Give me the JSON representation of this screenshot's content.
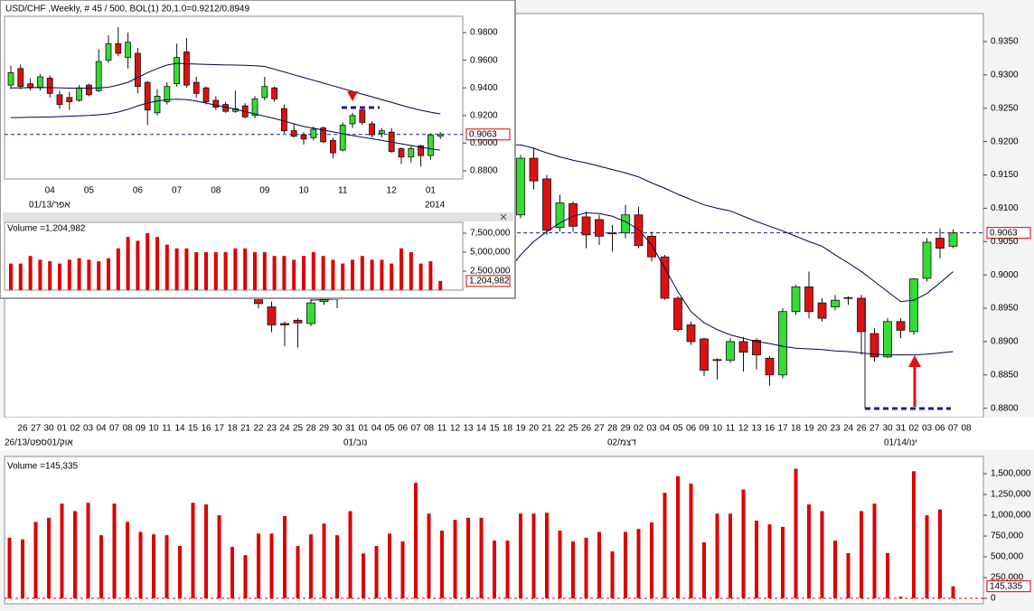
{
  "chart_data": [
    {
      "type": "candlestick",
      "categories": [
        null,
        "26",
        "27",
        "30",
        "01",
        "02",
        "03",
        "04",
        "07",
        "08",
        "09",
        "10",
        "11",
        "14",
        "15",
        "16",
        "17",
        "18",
        "21",
        "22",
        "23",
        "24",
        "25",
        "28",
        "29",
        "30",
        "31",
        "01",
        "04",
        "05",
        "06",
        "07",
        "08",
        "11",
        "12",
        "13",
        "14",
        "15",
        "18",
        "19",
        "20",
        "21",
        "22",
        "25",
        "26",
        "27",
        "28",
        "29",
        "02",
        "03",
        "04",
        "05",
        "06",
        "09",
        "10",
        "11",
        "12",
        "13",
        "16",
        "17",
        "18",
        "19",
        "20",
        "23",
        "24",
        "26",
        "27",
        "30",
        "31",
        "02",
        "03",
        "06",
        "07",
        "08"
      ],
      "period_labels": [
        "26/13/ספט",
        "01/אוק",
        "01/נוב",
        "02/דצמ",
        "01/14/ינו"
      ],
      "open": [
        null,
        null,
        null,
        null,
        null,
        null,
        null,
        null,
        null,
        null,
        null,
        null,
        null,
        null,
        null,
        null,
        null,
        null,
        null,
        0.8975,
        0.8952,
        0.8927,
        0.8932,
        0.8927,
        0.896,
        0.897,
        null,
        null,
        null,
        null,
        null,
        null,
        null,
        null,
        null,
        null,
        null,
        null,
        null,
        0.909,
        0.9175,
        0.9144,
        0.9071,
        0.9107,
        0.9087,
        0.9083,
        0.9063,
        0.9063,
        0.909,
        0.9058,
        0.9027,
        0.8965,
        0.8925,
        0.8904,
        0.8873,
        0.8872,
        0.89,
        0.8902,
        0.8875,
        0.885,
        0.8945,
        0.8982,
        0.8958,
        0.8952,
        0.8965,
        0.8965,
        0.8912,
        0.8877,
        0.893,
        0.8915,
        0.8995,
        0.9055,
        0.9043,
        null
      ],
      "high": [
        null,
        null,
        null,
        null,
        null,
        null,
        null,
        null,
        null,
        null,
        null,
        null,
        null,
        null,
        null,
        null,
        null,
        null,
        null,
        0.8985,
        0.896,
        0.893,
        0.8935,
        0.8965,
        0.898,
        0.899,
        null,
        null,
        null,
        null,
        null,
        null,
        null,
        null,
        null,
        null,
        null,
        null,
        null,
        0.918,
        0.919,
        0.915,
        0.912,
        0.911,
        0.9095,
        0.909,
        0.9075,
        0.9105,
        0.9102,
        0.9065,
        0.903,
        0.8968,
        0.893,
        0.8906,
        0.8875,
        0.8905,
        0.8907,
        0.8905,
        0.8878,
        0.895,
        0.8985,
        0.9005,
        0.8965,
        0.897,
        0.8968,
        0.897,
        0.892,
        0.8935,
        0.8935,
        0.8995,
        0.9055,
        0.907,
        0.9068,
        null
      ],
      "low": [
        null,
        null,
        null,
        null,
        null,
        null,
        null,
        null,
        null,
        null,
        null,
        null,
        null,
        null,
        null,
        null,
        null,
        null,
        null,
        0.895,
        0.8914,
        0.8893,
        0.8891,
        0.8923,
        0.8955,
        0.895,
        null,
        null,
        null,
        null,
        null,
        null,
        null,
        null,
        null,
        null,
        null,
        null,
        null,
        0.9085,
        0.9128,
        0.906,
        0.9065,
        0.9065,
        0.904,
        0.9045,
        0.9035,
        0.9055,
        0.904,
        0.902,
        0.8963,
        0.8915,
        0.8895,
        0.8848,
        0.8843,
        0.8868,
        0.8855,
        0.8858,
        0.8834,
        0.8845,
        0.894,
        0.8935,
        0.893,
        0.8947,
        0.8955,
        0.888,
        0.887,
        0.8875,
        0.8905,
        0.891,
        0.899,
        0.9025,
        0.904,
        null
      ],
      "close": [
        null,
        null,
        null,
        null,
        null,
        null,
        null,
        null,
        null,
        null,
        null,
        null,
        null,
        null,
        null,
        null,
        null,
        null,
        null,
        0.8957,
        0.8925,
        0.8925,
        0.8928,
        0.8958,
        0.8973,
        0.8975,
        null,
        null,
        null,
        null,
        null,
        null,
        null,
        null,
        null,
        null,
        null,
        null,
        null,
        0.9175,
        0.9141,
        0.9067,
        0.9108,
        0.9073,
        0.906,
        0.9058,
        0.9062,
        0.909,
        0.9044,
        0.9027,
        0.8965,
        0.8918,
        0.89,
        0.8857,
        0.8872,
        0.89,
        0.8884,
        0.888,
        0.885,
        0.8945,
        0.8982,
        0.8945,
        0.8935,
        0.8962,
        0.8966,
        0.8915,
        0.8877,
        0.893,
        0.8917,
        0.8994,
        0.9049,
        0.904,
        0.9063,
        null
      ],
      "up_color": "#33dd33",
      "down_color": "#dd1111",
      "series": [
        {
          "color": "#000055",
          "values": [
            null,
            null,
            null,
            null,
            null,
            null,
            null,
            null,
            null,
            null,
            null,
            null,
            null,
            null,
            null,
            null,
            null,
            null,
            null,
            null,
            null,
            null,
            null,
            null,
            null,
            null,
            null,
            null,
            null,
            null,
            null,
            null,
            null,
            null,
            null,
            null,
            null,
            null,
            0.9195,
            0.9195,
            0.919,
            0.9183,
            0.9177,
            0.9172,
            0.9168,
            0.9163,
            0.9158,
            0.9153,
            0.9147,
            0.9138,
            0.913,
            0.9121,
            0.9113,
            0.9105,
            0.91,
            0.9096,
            0.9088,
            0.908,
            0.9073,
            0.9066,
            0.9058,
            0.905,
            0.9043,
            0.903,
            0.9018,
            0.9005,
            0.899,
            0.8975,
            0.896,
            0.8962,
            0.8972,
            0.8988,
            0.9005,
            null
          ]
        },
        {
          "color": "#000055",
          "values": [
            null,
            null,
            null,
            null,
            null,
            null,
            null,
            null,
            null,
            null,
            null,
            null,
            null,
            null,
            null,
            null,
            null,
            null,
            null,
            null,
            null,
            null,
            null,
            0.8962,
            0.8963,
            0.8964,
            0.8965,
            0.8966,
            null,
            null,
            null,
            null,
            null,
            null,
            null,
            null,
            null,
            null,
            0.9005,
            0.903,
            0.905,
            0.9065,
            0.9078,
            0.9088,
            0.9093,
            0.9092,
            0.9088,
            0.908,
            0.9068,
            0.9045,
            0.901,
            0.8975,
            0.8945,
            0.8928,
            0.8918,
            0.891,
            0.8905,
            0.89,
            0.8897,
            0.8893,
            0.889,
            0.8889,
            0.8888,
            0.8886,
            0.8885,
            0.8883,
            0.8881,
            0.888,
            0.888,
            0.888,
            0.8881,
            0.8883,
            0.8885,
            null
          ]
        }
      ],
      "ylim": [
        0.8786,
        0.9392
      ],
      "yticks": [
        {
          "value": 0.88,
          "label": "0.8800"
        },
        {
          "value": 0.885,
          "label": "0.8850"
        },
        {
          "value": 0.89,
          "label": "0.8900"
        },
        {
          "value": 0.895,
          "label": "0.8950"
        },
        {
          "value": 0.9,
          "label": "0.9000"
        },
        {
          "value": 0.905,
          "label": "0.9050"
        },
        {
          "value": 0.91,
          "label": "0.9100"
        },
        {
          "value": 0.915,
          "label": "0.9150"
        },
        {
          "value": 0.92,
          "label": "0.9200"
        },
        {
          "value": 0.925,
          "label": "0.9250"
        },
        {
          "value": 0.93,
          "label": "0.9300"
        },
        {
          "value": 0.935,
          "label": "0.9350"
        }
      ],
      "last_price": {
        "value": 0.9063,
        "label": "0.9063"
      }
    },
    {
      "type": "bar",
      "title": "Volume =145,335",
      "title_color": "#dd0000",
      "color": "#dd0000",
      "values": [
        730000,
        710000,
        920000,
        970000,
        1140000,
        1050000,
        1150000,
        760000,
        1140000,
        920000,
        800000,
        770000,
        760000,
        630000,
        1150000,
        1130000,
        1000000,
        620000,
        520000,
        780000,
        780000,
        990000,
        630000,
        770000,
        900000,
        760000,
        1050000,
        540000,
        630000,
        780000,
        685000,
        1390000,
        1020000,
        815000,
        945000,
        970000,
        970000,
        695000,
        695000,
        1020000,
        1020000,
        1030000,
        815000,
        685000,
        730000,
        800000,
        565000,
        800000,
        835000,
        915000,
        1270000,
        1470000,
        1380000,
        675000,
        1020000,
        1020000,
        1310000,
        935000,
        890000,
        860000,
        1560000,
        1130000,
        1050000,
        695000,
        545000,
        1050000,
        1140000,
        545000,
        20000,
        1530000,
        1000000,
        1070000,
        145335,
        null
      ],
      "ylim": [
        -65000,
        1675000
      ],
      "yticks": [
        0,
        {
          "value": 250000,
          "label": "250,000"
        },
        {
          "value": 500000,
          "label": "500,000"
        },
        {
          "value": 750000,
          "label": "750,000"
        },
        {
          "value": 1000000,
          "label": "1,000,000"
        },
        {
          "value": 1250000,
          "label": "1,250,000"
        },
        {
          "value": 1500000,
          "label": "1,500,000"
        }
      ],
      "last_value": {
        "value": 145335,
        "label": "145,335"
      }
    },
    {
      "type": "candlestick",
      "title": "USD/CHF ,Weekly, # 45 / 500, BOL(1) 20,1.0=0.9212/0.8949",
      "title_color": "#000066",
      "categories": [
        null,
        null,
        null,
        null,
        "04",
        null,
        null,
        null,
        "05",
        null,
        null,
        null,
        null,
        "06",
        null,
        null,
        null,
        "07",
        null,
        null,
        null,
        "08",
        null,
        null,
        null,
        null,
        "09",
        null,
        null,
        null,
        "10",
        null,
        null,
        null,
        "11",
        null,
        null,
        null,
        null,
        "12",
        null,
        null,
        null,
        "01",
        null
      ],
      "period_labels": [
        "01/13/אפר",
        "2014"
      ],
      "open": [
        0.942,
        0.954,
        0.943,
        0.94,
        0.947,
        0.935,
        0.933,
        0.931,
        0.942,
        0.938,
        0.96,
        0.972,
        0.962,
        0.965,
        0.944,
        0.922,
        0.93,
        0.943,
        0.966,
        0.944,
        0.94,
        0.931,
        0.928,
        0.923,
        0.927,
        0.92,
        0.933,
        0.94,
        0.925,
        0.909,
        0.906,
        0.904,
        0.911,
        0.902,
        0.895,
        0.914,
        0.924,
        0.914,
        0.907,
        0.908,
        0.896,
        0.89,
        0.898,
        0.891,
        0.905
      ],
      "high": [
        0.956,
        0.957,
        0.947,
        0.95,
        0.949,
        0.938,
        0.937,
        0.942,
        0.943,
        0.968,
        0.978,
        0.984,
        0.98,
        0.969,
        0.945,
        0.939,
        0.944,
        0.972,
        0.976,
        0.948,
        0.941,
        0.934,
        0.93,
        0.938,
        0.929,
        0.934,
        0.948,
        0.941,
        0.928,
        0.914,
        0.908,
        0.912,
        0.912,
        0.904,
        0.915,
        0.922,
        0.925,
        0.916,
        0.911,
        0.911,
        0.897,
        0.898,
        0.899,
        0.907,
        0.908
      ],
      "low": [
        0.939,
        0.939,
        0.938,
        0.938,
        0.933,
        0.925,
        0.924,
        0.93,
        0.934,
        0.937,
        0.958,
        0.963,
        0.954,
        0.936,
        0.913,
        0.92,
        0.928,
        0.941,
        0.94,
        0.933,
        0.928,
        0.924,
        0.922,
        0.922,
        0.918,
        0.918,
        0.931,
        0.93,
        0.907,
        0.904,
        0.899,
        0.902,
        0.9,
        0.889,
        0.894,
        0.911,
        0.913,
        0.904,
        0.904,
        0.893,
        0.885,
        0.886,
        0.883,
        0.888,
        0.903
      ],
      "close": [
        0.951,
        0.941,
        0.94,
        0.948,
        0.936,
        0.928,
        0.93,
        0.94,
        0.935,
        0.959,
        0.972,
        0.965,
        0.973,
        0.941,
        0.924,
        0.934,
        0.941,
        0.962,
        0.942,
        0.936,
        0.93,
        0.926,
        0.923,
        0.925,
        0.919,
        0.932,
        0.941,
        0.932,
        0.909,
        0.905,
        0.903,
        0.91,
        0.901,
        0.893,
        0.913,
        0.92,
        0.915,
        0.906,
        0.909,
        0.894,
        0.89,
        0.896,
        0.891,
        0.906,
        0.9063
      ],
      "up_color": "#33dd33",
      "down_color": "#dd1111",
      "series": [
        {
          "color": "#000055",
          "values": [
            0.94,
            0.94,
            0.9402,
            0.9403,
            0.9402,
            0.94,
            0.9398,
            0.9397,
            0.9398,
            0.94,
            0.9405,
            0.942,
            0.944,
            0.9475,
            0.951,
            0.954,
            0.9565,
            0.9578,
            0.9575,
            0.9572,
            0.957,
            0.9568,
            0.9566,
            0.9565,
            0.9563,
            0.956,
            0.9555,
            0.9535,
            0.9515,
            0.9495,
            0.9475,
            0.9455,
            0.9435,
            0.9415,
            0.9395,
            0.9375,
            0.9355,
            0.9335,
            0.9315,
            0.9295,
            0.9275,
            0.9255,
            0.9238,
            0.9224,
            0.9212
          ]
        },
        {
          "color": "#000055",
          "values": [
            0.9185,
            0.9186,
            0.9187,
            0.9188,
            0.919,
            0.9192,
            0.9195,
            0.9198,
            0.92,
            0.9205,
            0.9212,
            0.9225,
            0.9245,
            0.927,
            0.929,
            0.9305,
            0.9315,
            0.9318,
            0.9315,
            0.9305,
            0.929,
            0.9275,
            0.926,
            0.9245,
            0.9228,
            0.9212,
            0.9195,
            0.9178,
            0.916,
            0.914,
            0.912,
            0.9108,
            0.9095,
            0.9082,
            0.9068,
            0.9055,
            0.9043,
            0.9032,
            0.902,
            0.9008,
            0.8995,
            0.8983,
            0.897,
            0.8959,
            0.8949
          ]
        }
      ],
      "ylim": [
        0.8741,
        0.9918
      ],
      "yticks": [
        {
          "value": 0.88,
          "label": "0.8800"
        },
        {
          "value": 0.9,
          "label": "0.9000"
        },
        {
          "value": 0.92,
          "label": "0.9200"
        },
        {
          "value": 0.94,
          "label": "0.9400"
        },
        {
          "value": 0.96,
          "label": "0.9600"
        },
        {
          "value": 0.98,
          "label": "0.9800"
        }
      ],
      "last_price": {
        "value": 0.9063,
        "label": "0.9063"
      }
    },
    {
      "type": "bar",
      "title": "Volume =1,204,982",
      "title_color": "#dd0000",
      "color": "#dd0000",
      "values": [
        3500000,
        3500000,
        4500000,
        4000000,
        3800000,
        3500000,
        4000000,
        4200000,
        4000000,
        3800000,
        4200000,
        5500000,
        7000000,
        6500000,
        7500000,
        7000000,
        6000000,
        5500000,
        5500000,
        5000000,
        5000000,
        5000000,
        5000000,
        5500000,
        5500000,
        5000000,
        5000000,
        4500000,
        4500000,
        4000000,
        4500000,
        5000000,
        4500000,
        4000000,
        3500000,
        4000000,
        4500000,
        4000000,
        4000000,
        3500000,
        5500000,
        5000000,
        3500000,
        3800000,
        1204982
      ],
      "ylim": [
        0,
        8930000
      ],
      "yticks": [
        {
          "value": 2500000,
          "label": "2,500,000"
        },
        {
          "value": 5000000,
          "label": "5,000,000"
        },
        {
          "value": 7500000,
          "label": "7,500,000"
        }
      ],
      "last_value": {
        "value": 1204982,
        "label": "1,204,982"
      }
    }
  ]
}
